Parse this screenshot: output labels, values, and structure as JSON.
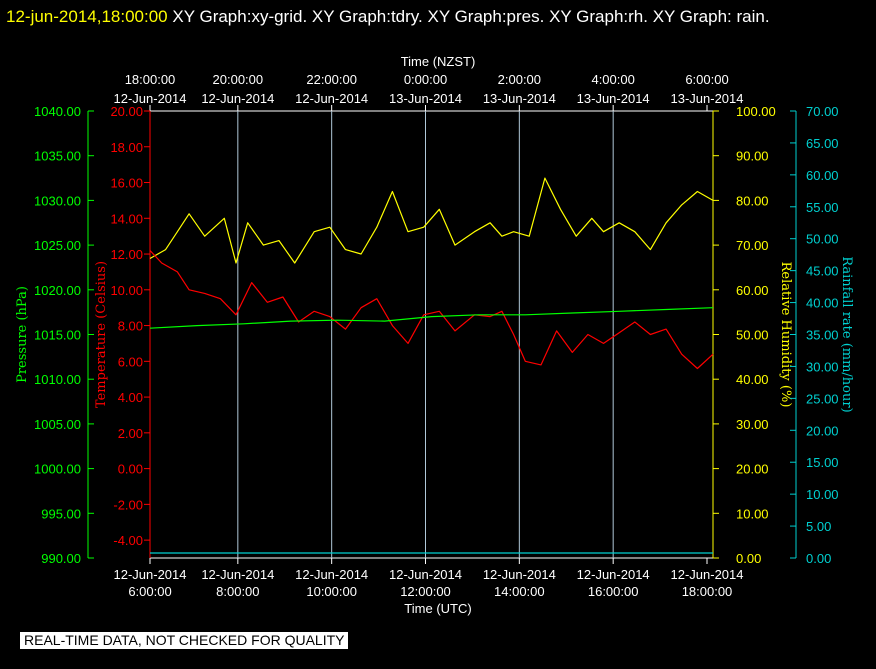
{
  "header": {
    "timestamp": "12-jun-2014,18:00:00",
    "title_rest": "XY Graph:xy-grid.  XY Graph:tdry.  XY Graph:pres.  XY Graph:rh.  XY Graph: rain."
  },
  "status_note": "REAL-TIME DATA, NOT CHECKED FOR QUALITY",
  "colors": {
    "background": "#000000",
    "title_timestamp": "#ffff00",
    "grid": "#b0c8d8",
    "temperature": "#ff0000",
    "pressure": "#00ff00",
    "humidity": "#ffff00",
    "rainfall": "#00d0d0"
  },
  "chart_data": {
    "type": "line",
    "grid": true,
    "x_top": {
      "title": "Time (NZST)",
      "ticks": [
        {
          "time": "18:00:00",
          "date": "12-Jun-2014"
        },
        {
          "time": "20:00:00",
          "date": "12-Jun-2014"
        },
        {
          "time": "22:00:00",
          "date": "12-Jun-2014"
        },
        {
          "time": "0:00:00",
          "date": "13-Jun-2014"
        },
        {
          "time": "2:00:00",
          "date": "13-Jun-2014"
        },
        {
          "time": "4:00:00",
          "date": "13-Jun-2014"
        },
        {
          "time": "6:00:00",
          "date": "13-Jun-2014"
        }
      ]
    },
    "x_bottom": {
      "title": "Time (UTC)",
      "range": [
        "2014-06-12 06:00",
        "2014-06-12 18:00"
      ],
      "ticks": [
        {
          "date": "12-Jun-2014",
          "time": "6:00:00"
        },
        {
          "date": "12-Jun-2014",
          "time": "8:00:00"
        },
        {
          "date": "12-Jun-2014",
          "time": "10:00:00"
        },
        {
          "date": "12-Jun-2014",
          "time": "12:00:00"
        },
        {
          "date": "12-Jun-2014",
          "time": "14:00:00"
        },
        {
          "date": "12-Jun-2014",
          "time": "16:00:00"
        },
        {
          "date": "12-Jun-2014",
          "time": "18:00:00"
        }
      ]
    },
    "y_axes": [
      {
        "key": "pressure",
        "label": "Pressure (hPa)",
        "color": "#00ff00",
        "range": [
          990,
          1040
        ],
        "ticks": [
          "1040.00",
          "1035.00",
          "1030.00",
          "1025.00",
          "1020.00",
          "1015.00",
          "1010.00",
          "1005.00",
          "1000.00",
          "995.00",
          "990.00"
        ]
      },
      {
        "key": "temperature",
        "label": "Temperature (Celsius)",
        "color": "#ff0000",
        "range": [
          -5,
          20
        ],
        "ticks": [
          "20.00",
          "18.00",
          "16.00",
          "14.00",
          "12.00",
          "10.00",
          "8.00",
          "6.00",
          "4.00",
          "2.00",
          "0.00",
          "-2.00",
          "-4.00"
        ]
      },
      {
        "key": "humidity",
        "label": "Relative Humidity (%)",
        "color": "#ffff00",
        "range": [
          0,
          100
        ],
        "ticks": [
          "100.00",
          "90.00",
          "80.00",
          "70.00",
          "60.00",
          "50.00",
          "40.00",
          "30.00",
          "20.00",
          "10.00",
          "0.00"
        ]
      },
      {
        "key": "rainfall",
        "label": "Rainfall rate (mm/hour)",
        "color": "#00d0d0",
        "range": [
          0,
          70
        ],
        "ticks": [
          "70.00",
          "65.00",
          "60.00",
          "55.00",
          "50.00",
          "45.00",
          "40.00",
          "35.00",
          "30.00",
          "25.00",
          "20.00",
          "15.00",
          "10.00",
          "5.00",
          "0.00"
        ]
      }
    ],
    "series": [
      {
        "key": "humidity",
        "axis": "humidity",
        "color": "#ffff00",
        "x": [
          "2014-06-12 06:00",
          "2014-06-12 06:20",
          "2014-06-12 06:35",
          "2014-06-12 06:50",
          "2014-06-12 07:10",
          "2014-06-12 07:35",
          "2014-06-12 07:50",
          "2014-06-12 08:05",
          "2014-06-12 08:25",
          "2014-06-12 08:45",
          "2014-06-12 09:05",
          "2014-06-12 09:30",
          "2014-06-12 09:50",
          "2014-06-12 10:10",
          "2014-06-12 10:30",
          "2014-06-12 10:50",
          "2014-06-12 11:10",
          "2014-06-12 11:30",
          "2014-06-12 11:50",
          "2014-06-12 12:10",
          "2014-06-12 12:30",
          "2014-06-12 12:55",
          "2014-06-12 13:15",
          "2014-06-12 13:30",
          "2014-06-12 13:45",
          "2014-06-12 14:05",
          "2014-06-12 14:25",
          "2014-06-12 14:45",
          "2014-06-12 15:05",
          "2014-06-12 15:25",
          "2014-06-12 15:40",
          "2014-06-12 16:00",
          "2014-06-12 16:20",
          "2014-06-12 16:40",
          "2014-06-12 17:00",
          "2014-06-12 17:20",
          "2014-06-12 17:40",
          "2014-06-12 18:00"
        ],
        "y": [
          67,
          69,
          73,
          77,
          72,
          76,
          66,
          75,
          70,
          71,
          66,
          73,
          74,
          69,
          68,
          74,
          82,
          73,
          74,
          78,
          70,
          73,
          75,
          72,
          73,
          72,
          85,
          78,
          72,
          76,
          73,
          75,
          73,
          69,
          75,
          79,
          82,
          80
        ]
      },
      {
        "key": "temperature",
        "axis": "temperature",
        "color": "#ff0000",
        "x": [
          "2014-06-12 06:00",
          "2014-06-12 06:15",
          "2014-06-12 06:35",
          "2014-06-12 06:50",
          "2014-06-12 07:10",
          "2014-06-12 07:30",
          "2014-06-12 07:50",
          "2014-06-12 08:10",
          "2014-06-12 08:30",
          "2014-06-12 08:50",
          "2014-06-12 09:10",
          "2014-06-12 09:30",
          "2014-06-12 09:50",
          "2014-06-12 10:10",
          "2014-06-12 10:30",
          "2014-06-12 10:50",
          "2014-06-12 11:10",
          "2014-06-12 11:30",
          "2014-06-12 11:50",
          "2014-06-12 12:10",
          "2014-06-12 12:30",
          "2014-06-12 12:55",
          "2014-06-12 13:15",
          "2014-06-12 13:30",
          "2014-06-12 13:45",
          "2014-06-12 14:00",
          "2014-06-12 14:20",
          "2014-06-12 14:40",
          "2014-06-12 15:00",
          "2014-06-12 15:20",
          "2014-06-12 15:40",
          "2014-06-12 16:00",
          "2014-06-12 16:20",
          "2014-06-12 16:40",
          "2014-06-12 17:00",
          "2014-06-12 17:20",
          "2014-06-12 17:40",
          "2014-06-12 18:00"
        ],
        "y": [
          12.2,
          11.5,
          11.0,
          10.0,
          9.8,
          9.5,
          8.6,
          10.4,
          9.3,
          9.6,
          8.2,
          8.8,
          8.5,
          7.8,
          9.0,
          9.5,
          8.0,
          7.0,
          8.6,
          8.8,
          7.7,
          8.6,
          8.5,
          8.8,
          7.5,
          6.0,
          5.8,
          7.7,
          6.5,
          7.5,
          7.0,
          7.6,
          8.2,
          7.5,
          7.8,
          6.4,
          5.6,
          6.4
        ]
      },
      {
        "key": "pressure",
        "axis": "pressure",
        "color": "#00ff00",
        "x": [
          "2014-06-12 06:00",
          "2014-06-12 07:00",
          "2014-06-12 08:00",
          "2014-06-12 09:00",
          "2014-06-12 10:00",
          "2014-06-12 11:00",
          "2014-06-12 12:00",
          "2014-06-12 13:00",
          "2014-06-12 14:00",
          "2014-06-12 15:00",
          "2014-06-12 16:00",
          "2014-06-12 17:00",
          "2014-06-12 18:00"
        ],
        "y": [
          1015.7,
          1016.0,
          1016.2,
          1016.5,
          1016.6,
          1016.5,
          1017.0,
          1017.2,
          1017.2,
          1017.4,
          1017.6,
          1017.8,
          1018.0
        ]
      },
      {
        "key": "rainfall",
        "axis": "rainfall",
        "color": "#00d0d0",
        "x": [
          "2014-06-12 06:00",
          "2014-06-12 18:00"
        ],
        "y": [
          0.0,
          0.0
        ]
      }
    ]
  }
}
